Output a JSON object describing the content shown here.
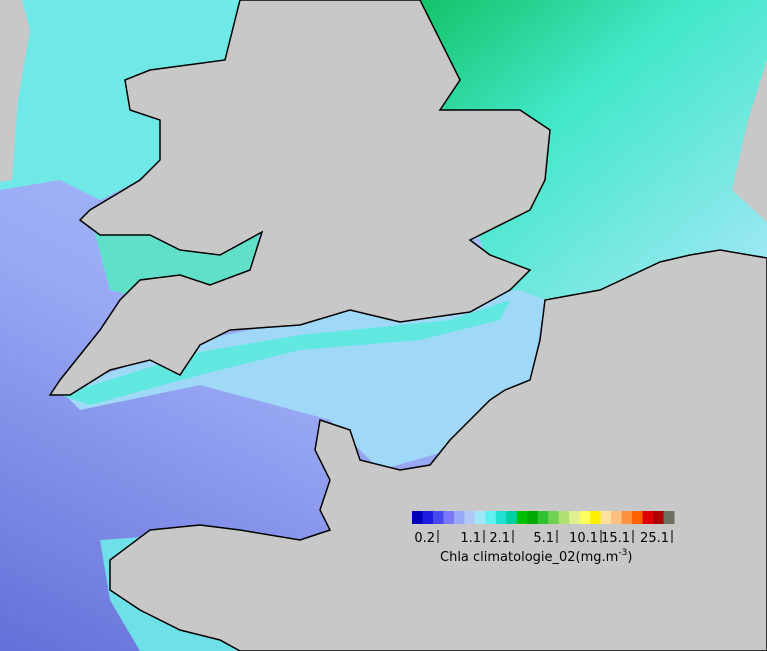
{
  "colorbar": {
    "colors": [
      "#0000b8",
      "#1c1ce0",
      "#4848f0",
      "#7878f8",
      "#98a8f8",
      "#b0c8f8",
      "#a0e8f8",
      "#60f0f0",
      "#20e0d0",
      "#00d0a0",
      "#00c000",
      "#00a800",
      "#30c030",
      "#70d050",
      "#b0e070",
      "#e0f090",
      "#ffff60",
      "#fff000",
      "#ffe0a0",
      "#ffc080",
      "#ff9040",
      "#ff6000",
      "#e00000",
      "#b00000",
      "#707060"
    ],
    "ticks": [
      0.2,
      1.1,
      2.1,
      5.1,
      10.1,
      15.1,
      25.1
    ],
    "caption": {
      "text": "Chla climatologie_02(mg.m",
      "exponent": "-3",
      "close": ")"
    }
  }
}
